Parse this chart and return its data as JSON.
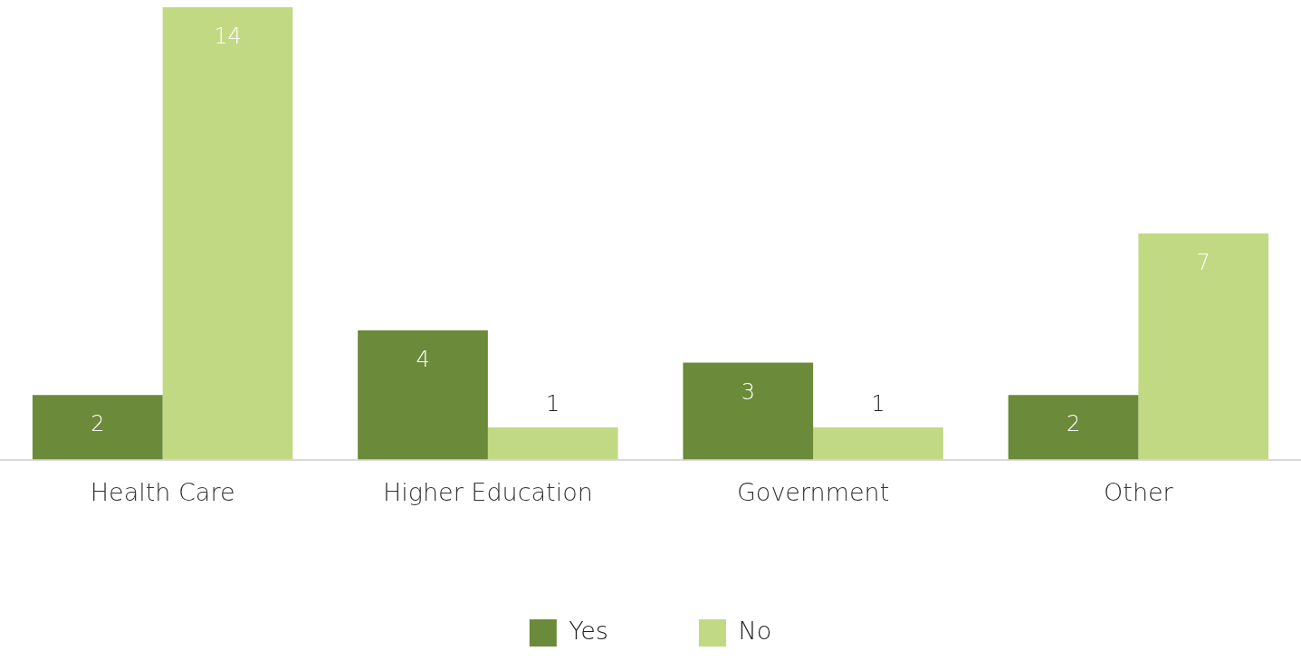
{
  "chart_data": {
    "type": "bar",
    "categories": [
      "Health Care",
      "Higher Education",
      "Government",
      "Other"
    ],
    "series": [
      {
        "name": "Yes",
        "color": "#6b8a3a",
        "values": [
          2,
          4,
          3,
          2
        ]
      },
      {
        "name": "No",
        "color": "#c2d984",
        "values": [
          14,
          1,
          1,
          7
        ]
      }
    ],
    "ylim": [
      0,
      14
    ],
    "grid": false,
    "legend": "bottom",
    "data_labels": true,
    "tick_labels": "x"
  }
}
